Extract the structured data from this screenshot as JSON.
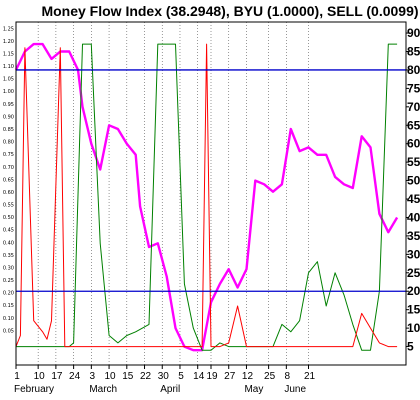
{
  "chart_data": {
    "type": "line",
    "title": "Money Flow Index (38.2948), BYU (1.0000), SELL (0.0099)",
    "x_ticks": [
      "1",
      "10",
      "17",
      "24",
      "3",
      "10",
      "15",
      "22",
      "30",
      "5",
      "14",
      "19",
      "27",
      "12",
      "25",
      "8",
      "21"
    ],
    "x_tick_index": [
      0,
      5,
      9,
      13,
      17,
      21,
      25,
      29,
      33,
      37,
      41,
      44,
      48,
      52,
      57,
      61,
      66
    ],
    "months": [
      {
        "label": "February",
        "index": 0
      },
      {
        "label": "March",
        "index": 17
      },
      {
        "label": "April",
        "index": 33
      },
      {
        "label": "May",
        "index": 52
      },
      {
        "label": "June",
        "index": 61
      }
    ],
    "right_axis": {
      "ylim": [
        0,
        93
      ],
      "ticks": [
        5,
        10,
        15,
        20,
        25,
        30,
        35,
        40,
        45,
        50,
        55,
        60,
        65,
        70,
        75,
        80,
        85,
        90
      ]
    },
    "left_axis": {
      "ylim": [
        -0.0875,
        1.275
      ],
      "ticks": [
        "0.05",
        "0.10",
        "0.15",
        "0.20",
        "0.25",
        "0.30",
        "0.35",
        "0.40",
        "0.45",
        "0.50",
        "0.55",
        "0.60",
        "0.65",
        "0.70",
        "0.75",
        "0.80",
        "0.85",
        "0.90",
        "0.95",
        "1.00",
        "1.05",
        "1.10",
        "1.15",
        "1.20",
        "1.25"
      ]
    },
    "reference_lines": [
      {
        "value": 80,
        "color": "#0000cc"
      },
      {
        "value": 20,
        "color": "#0000cc"
      }
    ],
    "series": [
      {
        "color": "#ff00ff",
        "points": [
          [
            0,
            80
          ],
          [
            2,
            85
          ],
          [
            4,
            87
          ],
          [
            6,
            87
          ],
          [
            8,
            83
          ],
          [
            10,
            85
          ],
          [
            12,
            85
          ],
          [
            14,
            80
          ],
          [
            15,
            70
          ],
          [
            17,
            60
          ],
          [
            19,
            53
          ],
          [
            21,
            65
          ],
          [
            23,
            64
          ],
          [
            25,
            60
          ],
          [
            27,
            57
          ],
          [
            28,
            43
          ],
          [
            30,
            32
          ],
          [
            32,
            33
          ],
          [
            34,
            24
          ],
          [
            36,
            10
          ],
          [
            38,
            5
          ],
          [
            40,
            4
          ],
          [
            42,
            4
          ],
          [
            44,
            17
          ],
          [
            46,
            22
          ],
          [
            48,
            26
          ],
          [
            50,
            21
          ],
          [
            52,
            26
          ],
          [
            54,
            50
          ],
          [
            56,
            49
          ],
          [
            58,
            47
          ],
          [
            60,
            49
          ],
          [
            62,
            64
          ],
          [
            64,
            58
          ],
          [
            66,
            59
          ],
          [
            68,
            57
          ],
          [
            70,
            57
          ],
          [
            72,
            51
          ],
          [
            74,
            49
          ],
          [
            76,
            48
          ],
          [
            78,
            62
          ],
          [
            80,
            59
          ],
          [
            82,
            41
          ],
          [
            84,
            36
          ],
          [
            86,
            40
          ]
        ]
      },
      {
        "color": "#008000",
        "points": [
          [
            0,
            5
          ],
          [
            4,
            5
          ],
          [
            6,
            5
          ],
          [
            8,
            5
          ],
          [
            10,
            5
          ],
          [
            12,
            5
          ],
          [
            13,
            6
          ],
          [
            15,
            87
          ],
          [
            17,
            87
          ],
          [
            19,
            33
          ],
          [
            21,
            8
          ],
          [
            23,
            6
          ],
          [
            25,
            8
          ],
          [
            27,
            9
          ],
          [
            30,
            11
          ],
          [
            32,
            87
          ],
          [
            34,
            87
          ],
          [
            36,
            87
          ],
          [
            38,
            22
          ],
          [
            40,
            10
          ],
          [
            42,
            4
          ],
          [
            44,
            4
          ],
          [
            46,
            6
          ],
          [
            48,
            5
          ],
          [
            52,
            5
          ],
          [
            54,
            5
          ],
          [
            56,
            5
          ],
          [
            58,
            5
          ],
          [
            60,
            11
          ],
          [
            62,
            9
          ],
          [
            64,
            12
          ],
          [
            66,
            25
          ],
          [
            68,
            28
          ],
          [
            70,
            16
          ],
          [
            72,
            25
          ],
          [
            74,
            19
          ],
          [
            76,
            11
          ],
          [
            78,
            4
          ],
          [
            80,
            4
          ],
          [
            82,
            20
          ],
          [
            84,
            87
          ],
          [
            86,
            87
          ]
        ]
      },
      {
        "color": "#ff0000",
        "points": [
          [
            0,
            5
          ],
          [
            1,
            8
          ],
          [
            2,
            86
          ],
          [
            4,
            12
          ],
          [
            6,
            9
          ],
          [
            7,
            7
          ],
          [
            8,
            12
          ],
          [
            10,
            86
          ],
          [
            11,
            5
          ],
          [
            12,
            5
          ],
          [
            14,
            5
          ],
          [
            16,
            5
          ],
          [
            18,
            5
          ],
          [
            20,
            5
          ],
          [
            22,
            5
          ],
          [
            24,
            5
          ],
          [
            26,
            5
          ],
          [
            28,
            5
          ],
          [
            30,
            5
          ],
          [
            32,
            5
          ],
          [
            34,
            5
          ],
          [
            36,
            5
          ],
          [
            38,
            5
          ],
          [
            40,
            5
          ],
          [
            42,
            5
          ],
          [
            43,
            87
          ],
          [
            44,
            5
          ],
          [
            46,
            5
          ],
          [
            48,
            6
          ],
          [
            50,
            16
          ],
          [
            52,
            5
          ],
          [
            54,
            5
          ],
          [
            56,
            5
          ],
          [
            58,
            5
          ],
          [
            60,
            5
          ],
          [
            62,
            5
          ],
          [
            64,
            5
          ],
          [
            66,
            5
          ],
          [
            68,
            5
          ],
          [
            70,
            5
          ],
          [
            72,
            5
          ],
          [
            74,
            5
          ],
          [
            76,
            5
          ],
          [
            78,
            14
          ],
          [
            80,
            10
          ],
          [
            82,
            6
          ],
          [
            84,
            5
          ],
          [
            86,
            5
          ]
        ]
      }
    ]
  }
}
